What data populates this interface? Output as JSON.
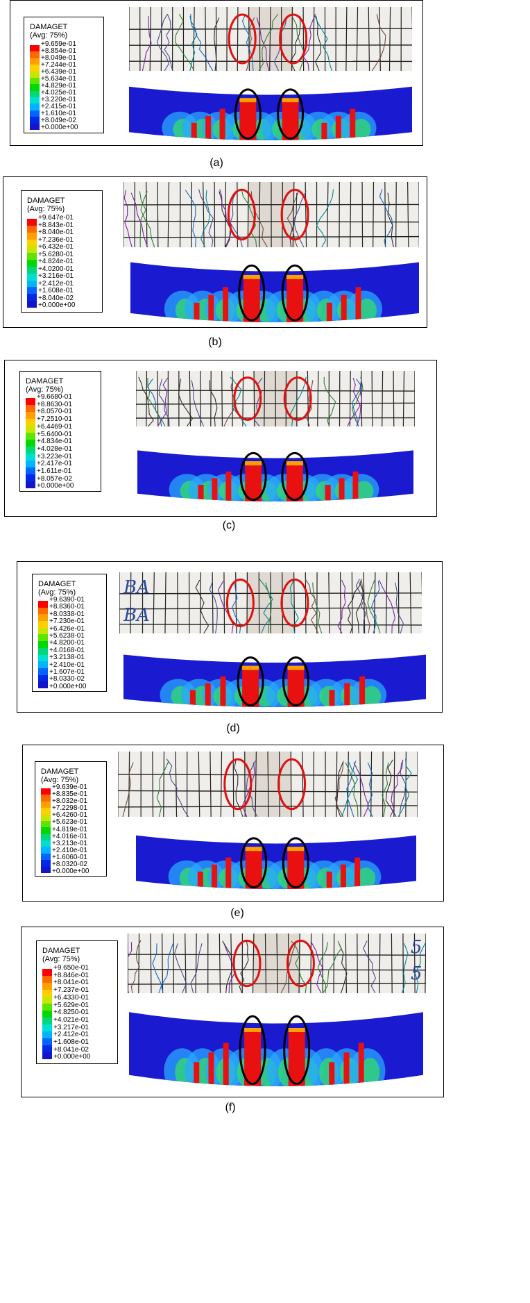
{
  "legend_colors": [
    "#ff0000",
    "#ff6a00",
    "#ffa000",
    "#ffd000",
    "#c8e600",
    "#5ee400",
    "#00d800",
    "#00d87a",
    "#00e0d0",
    "#00b4ff",
    "#0064ff",
    "#0028e8",
    "#1414c8"
  ],
  "panels": [
    {
      "caption": "(a)",
      "legend_title": "DAMAGET",
      "legend_subtitle": "(Avg: 75%)",
      "values": [
        "+9.659e-01",
        "+8.854e-01",
        "+8.049e-01",
        "+7.244e-01",
        "+6.439e-01",
        "+5.634e-01",
        "+4.829e-01",
        "+4.025e-01",
        "+3.220e-01",
        "+2.415e-01",
        "+1.610e-01",
        "+8.049e-02",
        "+0.000e+00"
      ]
    },
    {
      "caption": "(b)",
      "legend_title": "DAMAGET",
      "legend_subtitle": "(Avg: 75%)",
      "values": [
        "+9.647e-01",
        "+8.843e-01",
        "+8.040e-01",
        "+7.236e-01",
        "+6.432e-01",
        "+5.6280-01",
        "+4.824e-01",
        "+4.0200-01",
        "+3.216e-01",
        "+2.412e-01",
        "+1.608e-01",
        "+8.040e-02",
        "+0.000e+00"
      ]
    },
    {
      "caption": "(c)",
      "legend_title": "DAMAGET",
      "legend_subtitle": "(Avg: 75%)",
      "values": [
        "+9.6680-01",
        "+8.8630-01",
        "+8.0570-01",
        "+7.2510-01",
        "+6.4469-01",
        "+5.6400-01",
        "+4.834e-01",
        "+4.028e-01",
        "+3.223e-01",
        "+2.417e-01",
        "+1.611e-01",
        "+8.057e-02",
        "+0.000e+00"
      ]
    },
    {
      "caption": "(d)",
      "legend_title": "DAMAGET",
      "legend_subtitle": "(Avg: 75%)",
      "values": [
        "+9.6390-01",
        "+8.8360-01",
        "+8.0338-01",
        "+7.230e-01",
        "+6.426e-01",
        "+5.6238-01",
        "+4.8200-01",
        "+4.0168-01",
        "+3.2138-01",
        "+2.410e-01",
        "+1.607e-01",
        "+8.0330-02",
        "+0.000e+00"
      ]
    },
    {
      "caption": "(e)",
      "legend_title": "DAMAGET",
      "legend_subtitle": "(Avg: 75%)",
      "values": [
        "+9.639e-01",
        "+8.835e-01",
        "+8.032e-01",
        "+7.2298-01",
        "+6.4260-01",
        "+5.623e-01",
        "+4.819e-01",
        "+4.016e-01",
        "+3.213e-01",
        "+2.410e-01",
        "+1.6060-01",
        "+8.0320-02",
        "+0.000e+00"
      ]
    },
    {
      "caption": "(f)",
      "legend_title": "DAMAGET",
      "legend_subtitle": "(Avg: 75%)",
      "values": [
        "+9.650e-01",
        "+8.846e-01",
        "+8.041e-01",
        "+7.237e-01",
        "+6.4330-01",
        "+5.629e-01",
        "+4.8250-01",
        "+4.021e-01",
        "+3.217e-01",
        "+2.412e-01",
        "+1.608e-01",
        "+8.041e-02",
        "+0.000e+00"
      ]
    }
  ],
  "photo_marks": {
    "d": [
      "BA",
      "BA"
    ],
    "f": [
      "5",
      "5"
    ]
  }
}
